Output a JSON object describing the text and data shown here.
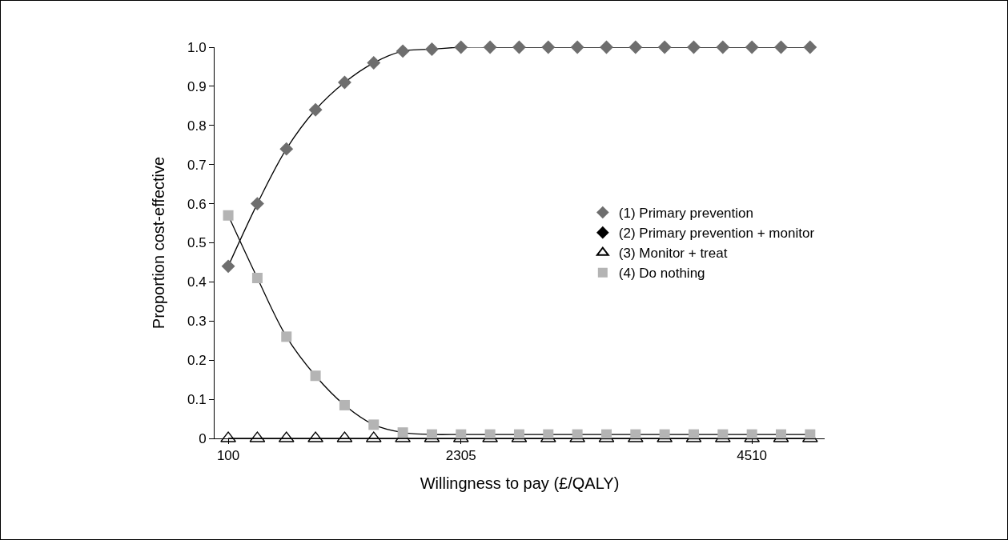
{
  "chart_data": {
    "type": "line",
    "xlabel": "Willingness to pay (£/QALY)",
    "ylabel": "Proportion cost-effective",
    "categories": [
      "100",
      null,
      null,
      null,
      null,
      null,
      null,
      null,
      "2305",
      null,
      null,
      null,
      null,
      null,
      null,
      null,
      null,
      null,
      "4510",
      null,
      null
    ],
    "series": [
      {
        "name": "(1) Primary prevention",
        "color": "#6e6e6e",
        "marker": "diamond",
        "values": [
          0.44,
          0.6,
          0.74,
          0.84,
          0.91,
          0.96,
          0.99,
          0.995,
          1.0,
          1.0,
          1.0,
          1.0,
          1.0,
          1.0,
          1.0,
          1.0,
          1.0,
          1.0,
          1.0,
          1.0,
          1.0
        ]
      },
      {
        "name": "(2) Primary prevention + monitor",
        "color": "#000000",
        "marker": "diamond",
        "values": [
          null,
          null,
          null,
          null,
          null,
          null,
          null,
          null,
          null,
          null,
          null,
          null,
          null,
          null,
          null,
          null,
          null,
          null,
          null,
          null,
          null
        ]
      },
      {
        "name": "(3) Monitor + treat",
        "color": "#000000",
        "marker": "triangle",
        "values": [
          0,
          0,
          0,
          0,
          0,
          0,
          0,
          0,
          0,
          0,
          0,
          0,
          0,
          0,
          0,
          0,
          0,
          0,
          0,
          0,
          0
        ]
      },
      {
        "name": "(4) Do nothing",
        "color": "#b4b4b4",
        "marker": "square",
        "values": [
          0.57,
          0.41,
          0.26,
          0.16,
          0.085,
          0.035,
          0.015,
          0.01,
          0.01,
          0.01,
          0.01,
          0.01,
          0.01,
          0.01,
          0.01,
          0.01,
          0.01,
          0.01,
          0.01,
          0.01,
          0.01
        ]
      }
    ],
    "ylim": [
      0,
      1.0
    ],
    "yticks": [
      0,
      0.1,
      0.2,
      0.3,
      0.4,
      0.5,
      0.6,
      0.7,
      0.8,
      0.9,
      {
        "value": 1.0,
        "label": "1.0"
      }
    ],
    "grid": false,
    "legend": "right",
    "line_style": "solid"
  }
}
